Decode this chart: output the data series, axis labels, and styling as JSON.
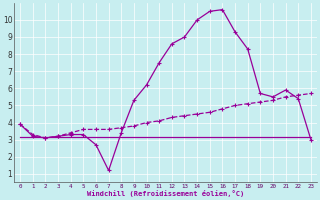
{
  "xlabel": "Windchill (Refroidissement éolien,°C)",
  "bg_color": "#c8eef0",
  "line_color": "#990099",
  "grid_color": "#ffffff",
  "xlim": [
    -0.5,
    23.5
  ],
  "ylim": [
    0.5,
    11.0
  ],
  "yticks": [
    1,
    2,
    3,
    4,
    5,
    6,
    7,
    8,
    9,
    10
  ],
  "xticks": [
    0,
    1,
    2,
    3,
    4,
    5,
    6,
    7,
    8,
    9,
    10,
    11,
    12,
    13,
    14,
    15,
    16,
    17,
    18,
    19,
    20,
    21,
    22,
    23
  ],
  "line1_x": [
    0,
    1,
    2,
    3,
    4,
    5,
    6,
    7,
    8,
    9,
    10,
    11,
    12,
    13,
    14,
    15,
    16,
    17,
    18,
    19,
    20,
    21,
    22,
    23
  ],
  "line1_y": [
    3.9,
    3.2,
    3.1,
    3.2,
    3.3,
    3.3,
    2.7,
    1.2,
    3.4,
    5.3,
    6.2,
    7.5,
    8.6,
    9.0,
    10.0,
    10.5,
    10.6,
    9.3,
    8.3,
    5.7,
    5.5,
    5.9,
    5.4,
    3.0
  ],
  "line2_x": [
    0,
    1,
    2,
    3,
    4,
    5,
    6,
    7,
    8,
    9,
    10,
    11,
    12,
    13,
    14,
    15,
    16,
    17,
    18,
    19,
    20,
    21,
    22,
    23
  ],
  "line2_y": [
    3.9,
    3.3,
    3.1,
    3.2,
    3.4,
    3.6,
    3.6,
    3.6,
    3.7,
    3.8,
    4.0,
    4.1,
    4.3,
    4.4,
    4.5,
    4.6,
    4.8,
    5.0,
    5.1,
    5.2,
    5.3,
    5.5,
    5.6,
    5.7
  ],
  "line3_x": [
    0,
    1,
    2,
    3,
    4,
    5,
    6,
    7,
    8,
    9,
    10,
    11,
    12,
    13,
    14,
    15,
    16,
    17,
    18,
    19,
    20,
    21,
    22,
    23
  ],
  "line3_y": [
    3.15,
    3.15,
    3.15,
    3.15,
    3.15,
    3.15,
    3.15,
    3.15,
    3.15,
    3.15,
    3.15,
    3.15,
    3.15,
    3.15,
    3.15,
    3.15,
    3.15,
    3.15,
    3.15,
    3.15,
    3.15,
    3.15,
    3.15,
    3.15
  ]
}
